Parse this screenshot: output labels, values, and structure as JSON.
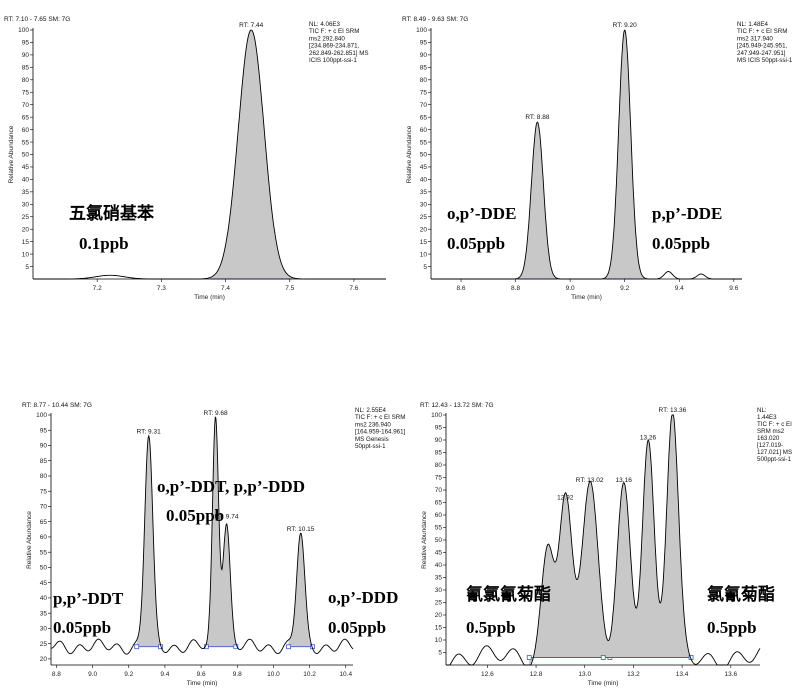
{
  "chart_data": [
    {
      "type": "line",
      "header": "RT: 7.10 - 7.65  SM: 7G",
      "ylabel": "Relative Abundance",
      "xlabel": "Time (min)",
      "xlim": [
        7.1,
        7.65
      ],
      "ylim": [
        0,
        100
      ],
      "x_ticks": [
        7.2,
        7.3,
        7.4,
        7.5,
        7.6
      ],
      "y_ticks": [
        5,
        10,
        15,
        20,
        25,
        30,
        35,
        40,
        45,
        50,
        55,
        60,
        65,
        70,
        75,
        80,
        85,
        90,
        95,
        100
      ],
      "info": [
        "NL: 4.06E3",
        "TIC F: + c EI SRM",
        "ms2 292.840",
        "[234.869-234.871,",
        "262.849-262.851]  MS",
        " ICIS 100ppt-ssi-1"
      ],
      "peaks": [
        {
          "rt": 7.44,
          "height": 100,
          "label": "RT: 7.44",
          "filled": true
        },
        {
          "rt": 7.22,
          "height": 1.5,
          "label": "",
          "filled": false
        }
      ],
      "baseline": 0,
      "annotations": [
        {
          "lines": [
            "五氯硝基苯",
            "0.1ppb"
          ],
          "position": "left-middle"
        }
      ]
    },
    {
      "type": "line",
      "header": "RT: 8.49 - 9.63  SM: 7G",
      "ylabel": "Relative Abundance",
      "xlabel": "Time (min)",
      "xlim": [
        8.49,
        9.63
      ],
      "ylim": [
        0,
        100
      ],
      "x_ticks": [
        8.6,
        8.8,
        9.0,
        9.2,
        9.4,
        9.6
      ],
      "y_ticks": [
        5,
        10,
        15,
        20,
        25,
        30,
        35,
        40,
        45,
        50,
        55,
        60,
        65,
        70,
        75,
        80,
        85,
        90,
        95,
        100
      ],
      "info": [
        "NL: 1.48E4",
        "TIC F: + c EI SRM",
        "ms2 317.940",
        "[245.949-245.951,",
        "247.949-247.951]",
        "MS  ICIS 50ppt-ssi-1"
      ],
      "peaks": [
        {
          "rt": 8.88,
          "height": 63,
          "label": "RT: 8.88",
          "filled": true
        },
        {
          "rt": 9.2,
          "height": 100,
          "label": "RT: 9.20",
          "filled": true
        },
        {
          "rt": 9.36,
          "height": 3,
          "label": "",
          "filled": false
        },
        {
          "rt": 9.48,
          "height": 2,
          "label": "",
          "filled": false
        }
      ],
      "baseline": 0,
      "annotations": [
        {
          "lines": [
            "o,p’-DDE",
            "0.05ppb"
          ],
          "position": "left-middle"
        },
        {
          "lines": [
            "p,p’-DDE",
            "0.05ppb"
          ],
          "position": "right-middle"
        }
      ]
    },
    {
      "type": "line",
      "header": "RT: 8.77 - 10.44  SM: 7G",
      "ylabel": "Relative Abundance",
      "xlabel": "Time (min)",
      "xlim": [
        8.77,
        10.44
      ],
      "ylim": [
        18,
        100
      ],
      "x_ticks": [
        8.8,
        9.0,
        9.2,
        9.4,
        9.6,
        9.8,
        10.0,
        10.2,
        10.4
      ],
      "y_ticks": [
        20,
        25,
        30,
        35,
        40,
        45,
        50,
        55,
        60,
        65,
        70,
        75,
        80,
        85,
        90,
        95,
        100
      ],
      "info": [
        "NL: 2.55E4",
        "TIC F: + c EI SRM",
        "ms2 236.940",
        "[164.959-164.961]",
        " MS  Genesis",
        "50ppt-ssi-1"
      ],
      "peaks": [
        {
          "rt": 9.31,
          "height": 93,
          "label": "RT: 9.31",
          "filled": true
        },
        {
          "rt": 9.68,
          "height": 99,
          "label": "RT: 9.68",
          "filled": true
        },
        {
          "rt": 9.74,
          "height": 65,
          "label": "RT: 9.74",
          "filled": true
        },
        {
          "rt": 10.15,
          "height": 61,
          "label": "RT: 10.15",
          "filled": true
        }
      ],
      "baseline": 24,
      "annotations": [
        {
          "lines": [
            "o,p’-DDT, p,p’-DDD",
            "0.05ppb"
          ],
          "position": "top-center"
        },
        {
          "lines": [
            "p,p’-DDT",
            "0.05ppb"
          ],
          "position": "bottom-left"
        },
        {
          "lines": [
            "o,p’-DDD",
            "0.05ppb"
          ],
          "position": "bottom-right"
        }
      ]
    },
    {
      "type": "line",
      "header": "RT: 12.43 - 13.72  SM: 7G",
      "ylabel": "Relative Abundance",
      "xlabel": "Time (min)",
      "xlim": [
        12.43,
        13.72
      ],
      "ylim": [
        0,
        100
      ],
      "x_ticks": [
        12.6,
        12.8,
        13.0,
        13.2,
        13.4,
        13.6
      ],
      "y_ticks": [
        5,
        10,
        15,
        20,
        25,
        30,
        35,
        40,
        45,
        50,
        55,
        60,
        65,
        70,
        75,
        80,
        85,
        90,
        95,
        100
      ],
      "info": [
        "NL:",
        "1.44E3",
        "TIC F: + c EI",
        "SRM ms2",
        "163.020",
        "[127.019-",
        "127.021]  MS",
        "500ppt-ssi-1"
      ],
      "peaks": [
        {
          "rt": 12.85,
          "height": 48,
          "label": "",
          "filled": true
        },
        {
          "rt": 12.92,
          "height": 65,
          "label": "12.92",
          "filled": true
        },
        {
          "rt": 13.02,
          "height": 72,
          "label": "RT: 13.02",
          "filled": true
        },
        {
          "rt": 13.16,
          "height": 72,
          "label": "13.16",
          "filled": true
        },
        {
          "rt": 13.26,
          "height": 89,
          "label": "13.26",
          "filled": true
        },
        {
          "rt": 13.36,
          "height": 100,
          "label": "RT: 13.36",
          "filled": true
        }
      ],
      "baseline": 3,
      "annotations": [
        {
          "lines": [
            "氰氯氰菊酯",
            "0.5ppb"
          ],
          "position": "bottom-left"
        },
        {
          "lines": [
            "氯氰菊酯",
            "0.5ppb"
          ],
          "position": "bottom-right"
        }
      ]
    }
  ]
}
